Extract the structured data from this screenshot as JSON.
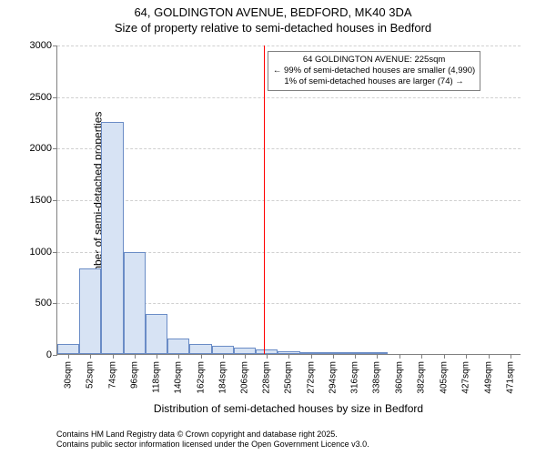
{
  "title": {
    "line1": "64, GOLDINGTON AVENUE, BEDFORD, MK40 3DA",
    "line2": "Size of property relative to semi-detached houses in Bedford"
  },
  "chart": {
    "type": "histogram",
    "background_color": "#ffffff",
    "grid_color": "#d0d0d0",
    "axis_color": "#808080",
    "bar_fill": "#d7e3f4",
    "bar_stroke": "#6a8cc6",
    "marker_color": "#ff0000",
    "ylim": [
      0,
      3000
    ],
    "y_ticks": [
      0,
      500,
      1000,
      1500,
      2000,
      2500,
      3000
    ],
    "x_ticks": [
      30,
      52,
      74,
      96,
      118,
      140,
      162,
      184,
      206,
      228,
      250,
      272,
      294,
      316,
      338,
      360,
      382,
      405,
      427,
      449,
      471
    ],
    "x_tick_unit": "sqm",
    "xlim": [
      19,
      482
    ],
    "bars": [
      {
        "x0": 19,
        "x1": 41,
        "y": 100
      },
      {
        "x0": 41,
        "x1": 63,
        "y": 830
      },
      {
        "x0": 63,
        "x1": 85,
        "y": 2250
      },
      {
        "x0": 85,
        "x1": 107,
        "y": 990
      },
      {
        "x0": 107,
        "x1": 129,
        "y": 390
      },
      {
        "x0": 129,
        "x1": 151,
        "y": 150
      },
      {
        "x0": 151,
        "x1": 173,
        "y": 100
      },
      {
        "x0": 173,
        "x1": 195,
        "y": 80
      },
      {
        "x0": 195,
        "x1": 217,
        "y": 60
      },
      {
        "x0": 217,
        "x1": 239,
        "y": 45
      },
      {
        "x0": 239,
        "x1": 261,
        "y": 25
      },
      {
        "x0": 261,
        "x1": 283,
        "y": 15
      },
      {
        "x0": 283,
        "x1": 305,
        "y": 10
      },
      {
        "x0": 305,
        "x1": 327,
        "y": 8
      },
      {
        "x0": 327,
        "x1": 349,
        "y": 5
      }
    ],
    "marker_x": 225,
    "xlabel": "Distribution of semi-detached houses by size in Bedford",
    "ylabel": "Number of semi-detached properties",
    "label_fontsize": 12,
    "tick_fontsize": 11
  },
  "annotation": {
    "line1": "64 GOLDINGTON AVENUE: 225sqm",
    "line2": "← 99% of semi-detached houses are smaller (4,990)",
    "line3": "1% of semi-detached houses are larger (74) →"
  },
  "footer": {
    "line1": "Contains HM Land Registry data © Crown copyright and database right 2025.",
    "line2": "Contains public sector information licensed under the Open Government Licence v3.0."
  }
}
